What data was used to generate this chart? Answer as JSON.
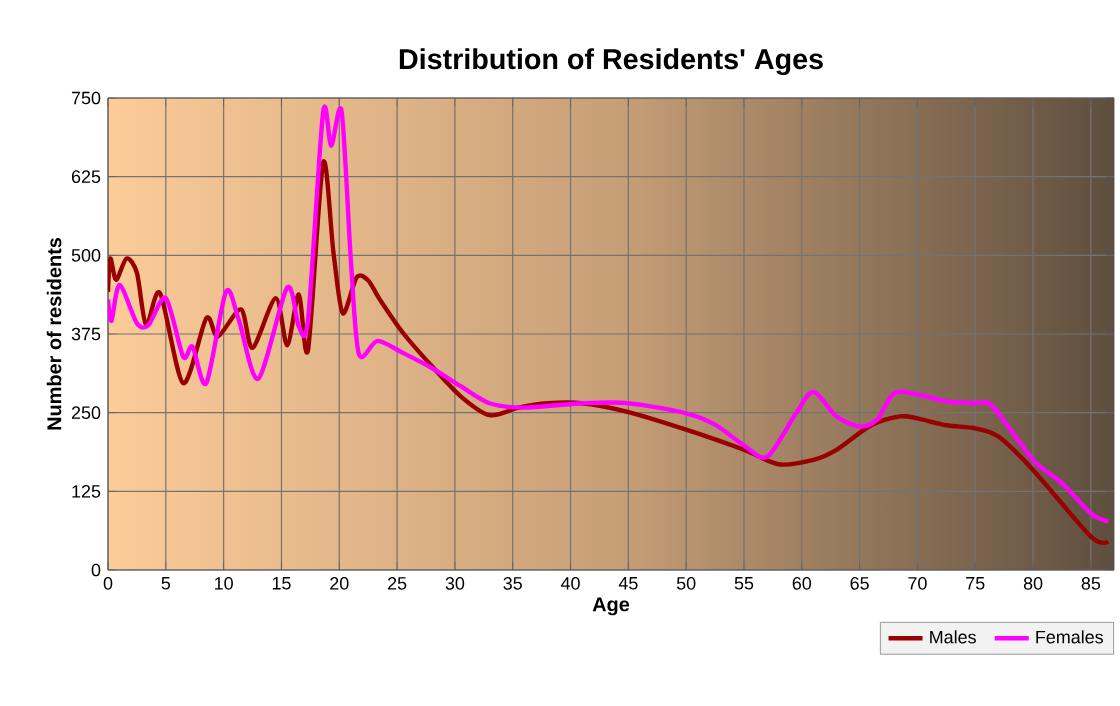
{
  "chart_data": {
    "type": "line",
    "title": "Distribution of Residents' Ages",
    "xlabel": "Age",
    "ylabel": "Number of residents",
    "xlim": [
      0,
      87
    ],
    "ylim": [
      0,
      750
    ],
    "xticks": [
      0,
      5,
      10,
      15,
      20,
      25,
      30,
      35,
      40,
      45,
      50,
      55,
      60,
      65,
      70,
      75,
      80,
      85
    ],
    "yticks": [
      0,
      125,
      250,
      375,
      500,
      625,
      750
    ],
    "grid": true,
    "legend": "bottom right",
    "marker": "none",
    "line_style": "solid",
    "series": [
      {
        "name": "Males",
        "color": "#990000",
        "x": [
          0,
          0.2,
          0.7,
          1.6,
          2.5,
          3.3,
          4.5,
          6.5,
          8.5,
          9.5,
          11.5,
          12.5,
          14.5,
          15.5,
          16.5,
          17.3,
          18.6,
          19.5,
          20.3,
          21.5,
          22.5,
          23.5,
          25.5,
          28,
          30.5,
          33,
          35.5,
          38,
          41,
          45,
          50,
          55,
          58,
          61,
          63,
          66,
          68.5,
          70,
          72.5,
          75,
          77,
          80,
          85,
          86.5
        ],
        "values": [
          442,
          495,
          461,
          495,
          472,
          389,
          440,
          297,
          400,
          371,
          414,
          353,
          432,
          357,
          438,
          350,
          647,
          504,
          408,
          465,
          460,
          430,
          377,
          324,
          276,
          246,
          258,
          265,
          265,
          251,
          223,
          191,
          168,
          175,
          191,
          230,
          244,
          241,
          230,
          225,
          212,
          159,
          53,
          45
        ]
      },
      {
        "name": "Females",
        "color": "#ff00ff",
        "x": [
          0,
          0.3,
          1,
          2.5,
          3.5,
          5,
          6.5,
          7.3,
          8.5,
          10.2,
          11.3,
          13,
          15.5,
          16.5,
          17.3,
          18.6,
          19.3,
          20.2,
          21,
          21.7,
          23.3,
          25.5,
          28,
          30.5,
          33,
          36,
          41,
          45,
          50,
          52.5,
          55,
          57,
          59.5,
          61,
          63,
          65,
          66.5,
          68,
          70,
          72.5,
          75,
          76.5,
          80,
          82.5,
          85,
          86.5
        ],
        "values": [
          430,
          396,
          453,
          392,
          389,
          432,
          339,
          355,
          297,
          442,
          398,
          304,
          449,
          387,
          398,
          727,
          674,
          729,
          493,
          343,
          364,
          345,
          321,
          292,
          265,
          258,
          265,
          265,
          249,
          231,
          198,
          180,
          249,
          283,
          244,
          228,
          239,
          281,
          279,
          268,
          265,
          260,
          175,
          138,
          90,
          77
        ]
      }
    ]
  }
}
